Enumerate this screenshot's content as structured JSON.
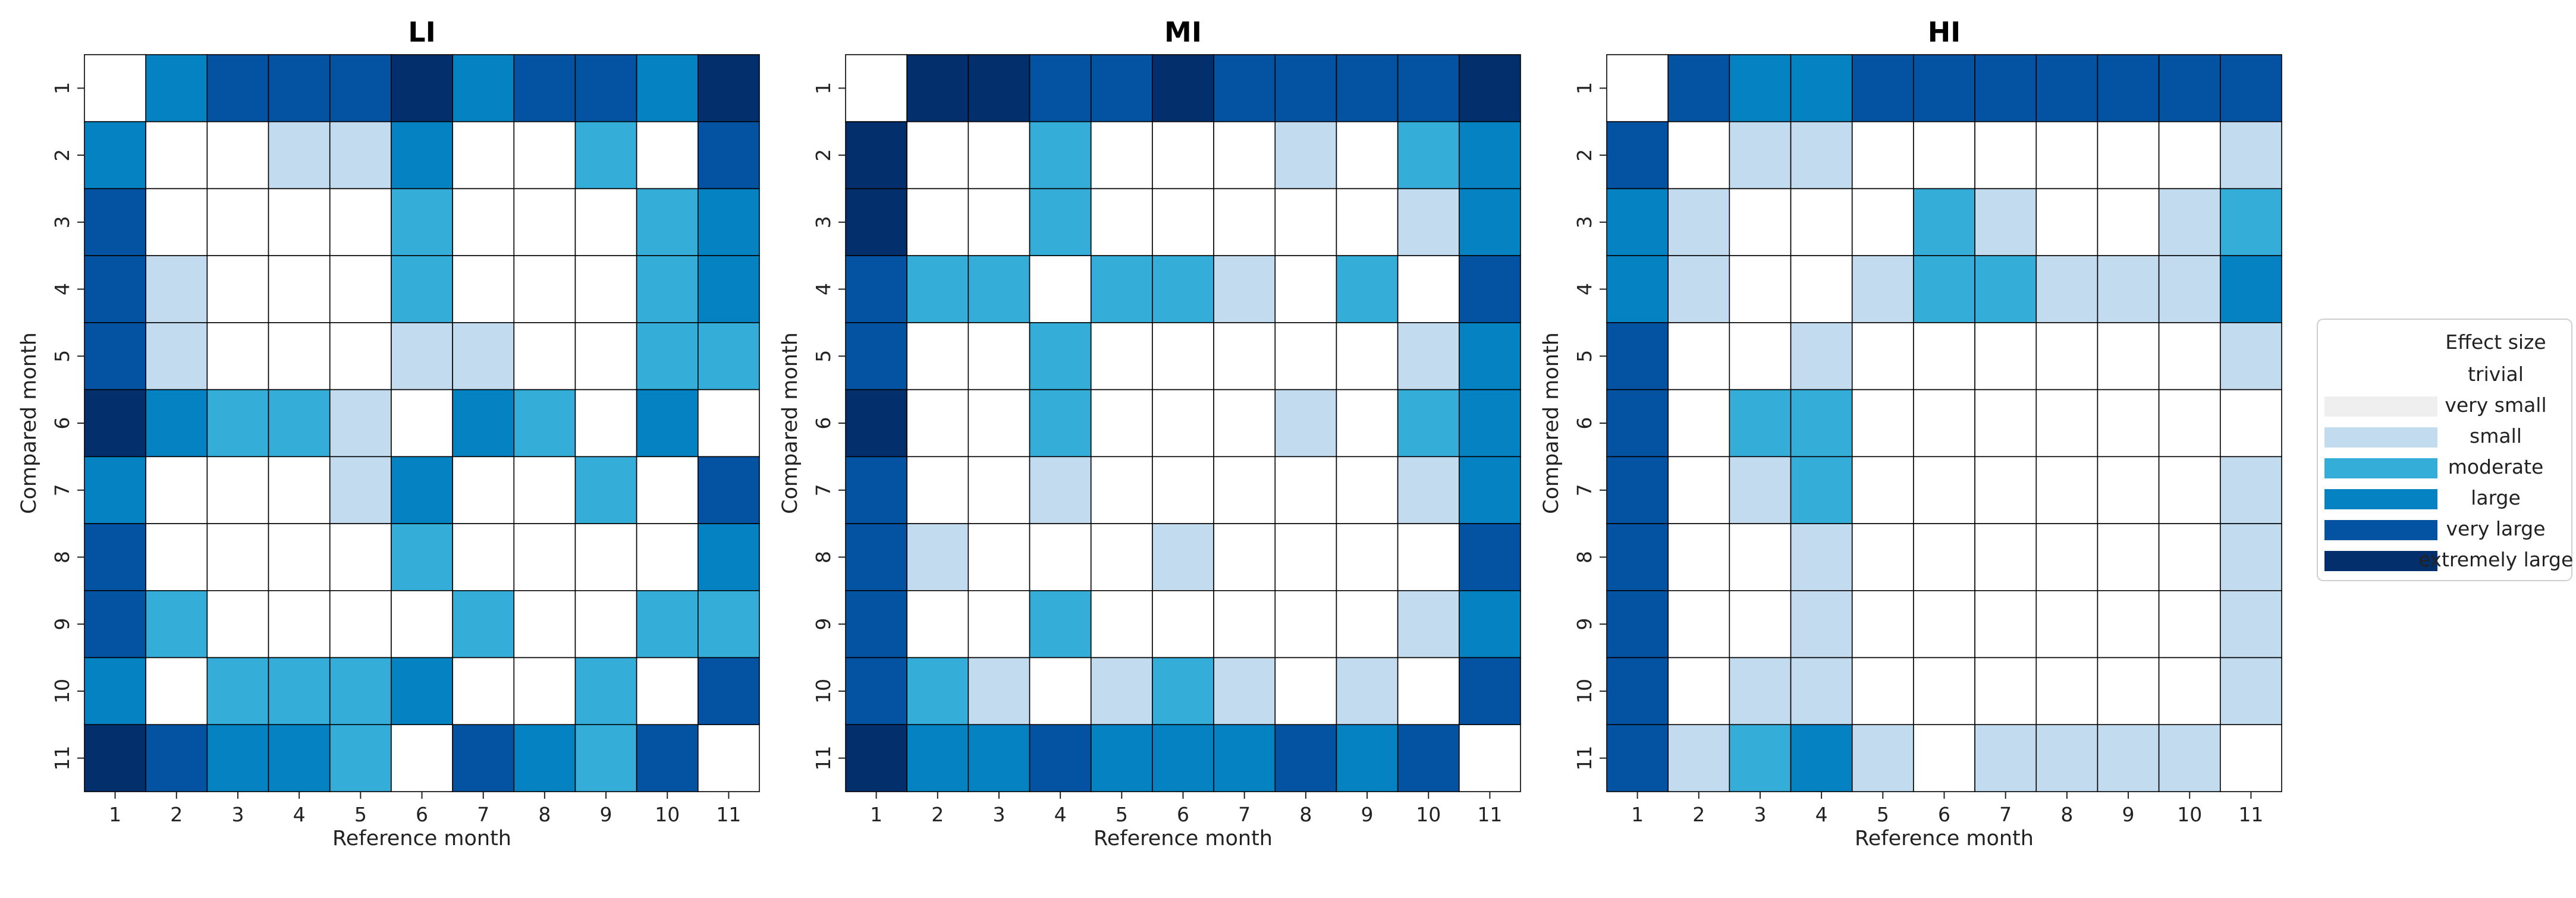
{
  "colors": {
    "trivial": "#ffffff",
    "very small": "#efefef",
    "small": "#c2dbef",
    "moderate": "#34add9",
    "large": "#0482c2",
    "very large": "#0452a2",
    "extremely large": "#032f6c"
  },
  "chart_data": [
    {
      "type": "heatmap",
      "title": "LI",
      "xlabel": "Reference month",
      "ylabel": "Compared month",
      "x_ticks": [
        "1",
        "2",
        "3",
        "4",
        "5",
        "6",
        "7",
        "8",
        "9",
        "10",
        "11"
      ],
      "y_ticks": [
        "1",
        "2",
        "3",
        "4",
        "5",
        "6",
        "7",
        "8",
        "9",
        "10",
        "11"
      ],
      "legend": false,
      "matrix": [
        [
          "trivial",
          "large",
          "very large",
          "very large",
          "very large",
          "extremely large",
          "large",
          "very large",
          "very large",
          "large",
          "extremely large"
        ],
        [
          "large",
          "trivial",
          "trivial",
          "small",
          "small",
          "large",
          "trivial",
          "trivial",
          "moderate",
          "trivial",
          "very large"
        ],
        [
          "very large",
          "trivial",
          "trivial",
          "trivial",
          "trivial",
          "moderate",
          "trivial",
          "trivial",
          "trivial",
          "moderate",
          "large"
        ],
        [
          "very large",
          "small",
          "trivial",
          "trivial",
          "trivial",
          "moderate",
          "trivial",
          "trivial",
          "trivial",
          "moderate",
          "large"
        ],
        [
          "very large",
          "small",
          "trivial",
          "trivial",
          "trivial",
          "small",
          "small",
          "trivial",
          "trivial",
          "moderate",
          "moderate"
        ],
        [
          "extremely large",
          "large",
          "moderate",
          "moderate",
          "small",
          "trivial",
          "large",
          "moderate",
          "trivial",
          "large",
          "trivial"
        ],
        [
          "large",
          "trivial",
          "trivial",
          "trivial",
          "small",
          "large",
          "trivial",
          "trivial",
          "moderate",
          "trivial",
          "very large"
        ],
        [
          "very large",
          "trivial",
          "trivial",
          "trivial",
          "trivial",
          "moderate",
          "trivial",
          "trivial",
          "trivial",
          "trivial",
          "large"
        ],
        [
          "very large",
          "moderate",
          "trivial",
          "trivial",
          "trivial",
          "trivial",
          "moderate",
          "trivial",
          "trivial",
          "moderate",
          "moderate"
        ],
        [
          "large",
          "trivial",
          "moderate",
          "moderate",
          "moderate",
          "large",
          "trivial",
          "trivial",
          "moderate",
          "trivial",
          "very large"
        ],
        [
          "extremely large",
          "very large",
          "large",
          "large",
          "moderate",
          "trivial",
          "very large",
          "large",
          "moderate",
          "very large",
          "trivial"
        ]
      ]
    },
    {
      "type": "heatmap",
      "title": "MI",
      "xlabel": "Reference month",
      "ylabel": "Compared month",
      "x_ticks": [
        "1",
        "2",
        "3",
        "4",
        "5",
        "6",
        "7",
        "8",
        "9",
        "10",
        "11"
      ],
      "y_ticks": [
        "1",
        "2",
        "3",
        "4",
        "5",
        "6",
        "7",
        "8",
        "9",
        "10",
        "11"
      ],
      "legend": false,
      "matrix": [
        [
          "trivial",
          "extremely large",
          "extremely large",
          "very large",
          "very large",
          "extremely large",
          "very large",
          "very large",
          "very large",
          "very large",
          "extremely large"
        ],
        [
          "extremely large",
          "trivial",
          "trivial",
          "moderate",
          "trivial",
          "trivial",
          "trivial",
          "small",
          "trivial",
          "moderate",
          "large"
        ],
        [
          "extremely large",
          "trivial",
          "trivial",
          "moderate",
          "trivial",
          "trivial",
          "trivial",
          "trivial",
          "trivial",
          "small",
          "large"
        ],
        [
          "very large",
          "moderate",
          "moderate",
          "trivial",
          "moderate",
          "moderate",
          "small",
          "trivial",
          "moderate",
          "trivial",
          "very large"
        ],
        [
          "very large",
          "trivial",
          "trivial",
          "moderate",
          "trivial",
          "trivial",
          "trivial",
          "trivial",
          "trivial",
          "small",
          "large"
        ],
        [
          "extremely large",
          "trivial",
          "trivial",
          "moderate",
          "trivial",
          "trivial",
          "trivial",
          "small",
          "trivial",
          "moderate",
          "large"
        ],
        [
          "very large",
          "trivial",
          "trivial",
          "small",
          "trivial",
          "trivial",
          "trivial",
          "trivial",
          "trivial",
          "small",
          "large"
        ],
        [
          "very large",
          "small",
          "trivial",
          "trivial",
          "trivial",
          "small",
          "trivial",
          "trivial",
          "trivial",
          "trivial",
          "very large"
        ],
        [
          "very large",
          "trivial",
          "trivial",
          "moderate",
          "trivial",
          "trivial",
          "trivial",
          "trivial",
          "trivial",
          "small",
          "large"
        ],
        [
          "very large",
          "moderate",
          "small",
          "trivial",
          "small",
          "moderate",
          "small",
          "trivial",
          "small",
          "trivial",
          "very large"
        ],
        [
          "extremely large",
          "large",
          "large",
          "very large",
          "large",
          "large",
          "large",
          "very large",
          "large",
          "very large",
          "trivial"
        ]
      ]
    },
    {
      "type": "heatmap",
      "title": "HI",
      "xlabel": "Reference month",
      "ylabel": "Compared month",
      "x_ticks": [
        "1",
        "2",
        "3",
        "4",
        "5",
        "6",
        "7",
        "8",
        "9",
        "10",
        "11"
      ],
      "y_ticks": [
        "1",
        "2",
        "3",
        "4",
        "5",
        "6",
        "7",
        "8",
        "9",
        "10",
        "11"
      ],
      "legend": true,
      "legend_position": "right",
      "legend_title": "Effect size",
      "legend_entries": [
        "trivial",
        "very small",
        "small",
        "moderate",
        "large",
        "very large",
        "extremely large"
      ],
      "matrix": [
        [
          "trivial",
          "very large",
          "large",
          "large",
          "very large",
          "very large",
          "very large",
          "very large",
          "very large",
          "very large",
          "very large"
        ],
        [
          "very large",
          "trivial",
          "small",
          "small",
          "trivial",
          "trivial",
          "trivial",
          "trivial",
          "trivial",
          "trivial",
          "small"
        ],
        [
          "large",
          "small",
          "trivial",
          "trivial",
          "trivial",
          "moderate",
          "small",
          "trivial",
          "trivial",
          "small",
          "moderate"
        ],
        [
          "large",
          "small",
          "trivial",
          "trivial",
          "small",
          "moderate",
          "moderate",
          "small",
          "small",
          "small",
          "large"
        ],
        [
          "very large",
          "trivial",
          "trivial",
          "small",
          "trivial",
          "trivial",
          "trivial",
          "trivial",
          "trivial",
          "trivial",
          "small"
        ],
        [
          "very large",
          "trivial",
          "moderate",
          "moderate",
          "trivial",
          "trivial",
          "trivial",
          "trivial",
          "trivial",
          "trivial",
          "trivial"
        ],
        [
          "very large",
          "trivial",
          "small",
          "moderate",
          "trivial",
          "trivial",
          "trivial",
          "trivial",
          "trivial",
          "trivial",
          "small"
        ],
        [
          "very large",
          "trivial",
          "trivial",
          "small",
          "trivial",
          "trivial",
          "trivial",
          "trivial",
          "trivial",
          "trivial",
          "small"
        ],
        [
          "very large",
          "trivial",
          "trivial",
          "small",
          "trivial",
          "trivial",
          "trivial",
          "trivial",
          "trivial",
          "trivial",
          "small"
        ],
        [
          "very large",
          "trivial",
          "small",
          "small",
          "trivial",
          "trivial",
          "trivial",
          "trivial",
          "trivial",
          "trivial",
          "small"
        ],
        [
          "very large",
          "small",
          "moderate",
          "large",
          "small",
          "trivial",
          "small",
          "small",
          "small",
          "small",
          "trivial"
        ]
      ]
    }
  ]
}
